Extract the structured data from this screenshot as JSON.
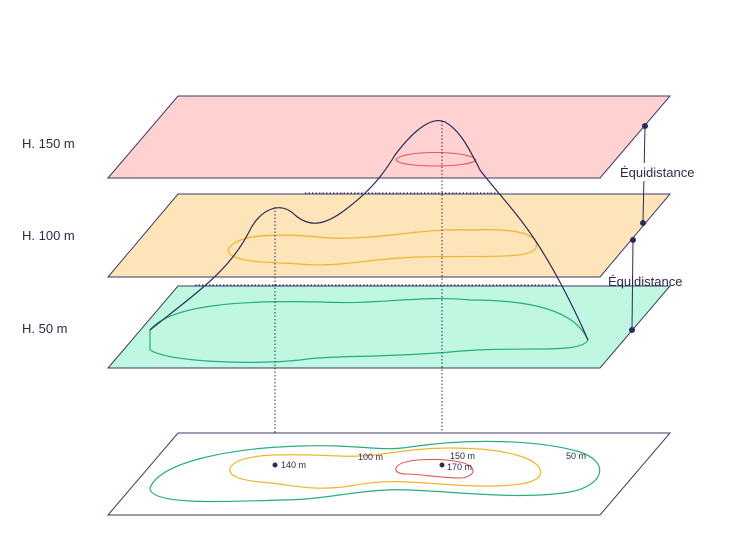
{
  "planes": [
    {
      "label": "H. 150 m"
    },
    {
      "label": "H. 100 m"
    },
    {
      "label": "H. 50 m"
    }
  ],
  "equidistance": [
    "Équidistance",
    "Équidistance"
  ],
  "map_labels": {
    "peak_low": "140 m",
    "contour_100": "100 m",
    "contour_150": "150 m",
    "peak_high": "170 m",
    "contour_50": "50 m"
  }
}
